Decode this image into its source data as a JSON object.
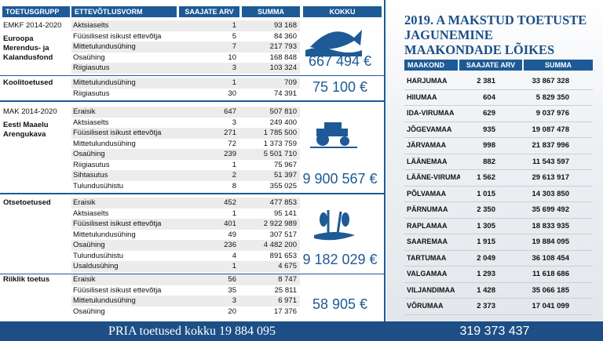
{
  "left": {
    "headers": [
      "TOETUSGRUPP",
      "ETTEVÕTLUSVORM",
      "SAAJATE ARV",
      "SUMMA",
      "KOKKU"
    ],
    "groups": [
      {
        "name": "EMKF 2014-2020",
        "subtitle": "Euroopa Merendus- ja Kalandusfond",
        "total": "667 494 €",
        "rows": [
          [
            "Aktsiaselts",
            "1",
            "93 168"
          ],
          [
            "Füüsilisest isikust ettevõtja",
            "5",
            "84 360"
          ],
          [
            "Mittetulundusühing",
            "7",
            "217 793"
          ],
          [
            "Osaühing",
            "10",
            "168 848"
          ],
          [
            "Riigiasutus",
            "3",
            "103 324"
          ]
        ]
      },
      {
        "name": "Koolitoetused",
        "total": "75 100 €",
        "rows": [
          [
            "Mittetulundusühing",
            "1",
            "709"
          ],
          [
            "Riigiasutus",
            "30",
            "74 391"
          ]
        ]
      },
      {
        "name": "MAK 2014-2020",
        "subtitle": "Eesti Maaelu Arengukava",
        "total": "9 900 567 €",
        "rows": [
          [
            "Eraisik",
            "647",
            "507 810"
          ],
          [
            "Aktsiaselts",
            "3",
            "249 400"
          ],
          [
            "Füüsilisest isikust ettevõtja",
            "271",
            "1 785 500"
          ],
          [
            "Mittetulundusühing",
            "72",
            "1 373 759"
          ],
          [
            "Osaühing",
            "239",
            "5 501 710"
          ],
          [
            "Riigiasutus",
            "1",
            "75 967"
          ],
          [
            "Sihtasutus",
            "2",
            "51 397"
          ],
          [
            "Tulundusühistu",
            "8",
            "355 025"
          ]
        ]
      },
      {
        "name": "Otsetoetused",
        "total": "9 182 029 €",
        "rows": [
          [
            "Eraisik",
            "452",
            "477 853"
          ],
          [
            "Aktsiaselts",
            "1",
            "95 141"
          ],
          [
            "Füüsilisest isikust ettevõtja",
            "401",
            "2 922 989"
          ],
          [
            "Mittetulundusühing",
            "49",
            "307 517"
          ],
          [
            "Osaühing",
            "236",
            "4 482 200"
          ],
          [
            "Tulundusühistu",
            "4",
            "891 653"
          ],
          [
            "Usaldusühing",
            "1",
            "4 675"
          ]
        ]
      },
      {
        "name": "Riiklik toetus",
        "total": "58 905 €",
        "rows": [
          [
            "Eraisik",
            "56",
            "8 747"
          ],
          [
            "Füüsilisest isikust ettevõtja",
            "35",
            "25 811"
          ],
          [
            "Mittetulundusühing",
            "3",
            "6 971"
          ],
          [
            "Osaühing",
            "20",
            "17 376"
          ]
        ]
      }
    ],
    "footer": "PRIA toetused kokku 19 884 095"
  },
  "right": {
    "title": "2019. A MAKSTUD TOETUSTE JAGUNEMINE MAAKONDADE LÕIKES",
    "headers": [
      "MAAKOND",
      "SAAJATE ARV",
      "SUMMA"
    ],
    "rows": [
      [
        "HARJUMAA",
        "2 381",
        "33 867 328"
      ],
      [
        "HIIUMAA",
        "604",
        "5 829 350"
      ],
      [
        "IDA-VIRUMAA",
        "629",
        "9 037 976"
      ],
      [
        "JÕGEVAMAA",
        "935",
        "19 087 478"
      ],
      [
        "JÄRVAMAA",
        "998",
        "21 837 996"
      ],
      [
        "LÄÄNEMAA",
        "882",
        "11 543 597"
      ],
      [
        "LÄÄNE-VIRUMAA",
        "1 562",
        "29 613 917"
      ],
      [
        "PÕLVAMAA",
        "1 015",
        "14 303 850"
      ],
      [
        "PÄRNUMAA",
        "2 350",
        "35 699 492"
      ],
      [
        "RAPLAMAA",
        "1 305",
        "18 833 935"
      ],
      [
        "SAAREMAA",
        "1 915",
        "19 884 095"
      ],
      [
        "TARTUMAA",
        "2 049",
        "36 108 454"
      ],
      [
        "VALGAMAA",
        "1 293",
        "11 618 686"
      ],
      [
        "VILJANDIMAA",
        "1 428",
        "35 066 185"
      ],
      [
        "VÕRUMAA",
        "2 373",
        "17 041 099"
      ]
    ],
    "footer": "319 373 437"
  }
}
